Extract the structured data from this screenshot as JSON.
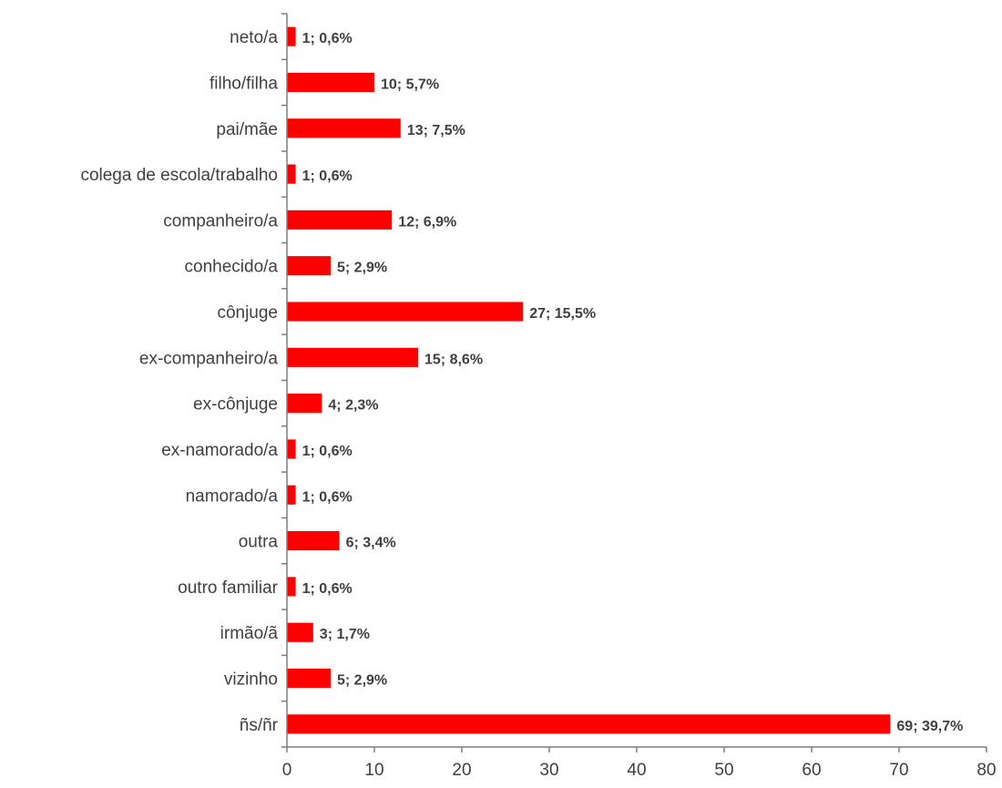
{
  "chart_data": {
    "type": "bar",
    "orientation": "horizontal",
    "categories": [
      "neto/a",
      "filho/filha",
      "pai/mãe",
      "colega de escola/trabalho",
      "companheiro/a",
      "conhecido/a",
      "cônjuge",
      "ex-companheiro/a",
      "ex-cônjuge",
      "ex-namorado/a",
      "namorado/a",
      "outra",
      "outro familiar",
      "irmão/ã",
      "vizinho",
      "ñs/ñr"
    ],
    "values": [
      1,
      10,
      13,
      1,
      12,
      5,
      27,
      15,
      4,
      1,
      1,
      6,
      1,
      3,
      5,
      69
    ],
    "data_labels": [
      "1; 0,6%",
      "10; 5,7%",
      "13; 7,5%",
      "1; 0,6%",
      "12; 6,9%",
      "5; 2,9%",
      "27; 15,5%",
      "15; 8,6%",
      "4; 2,3%",
      "1; 0,6%",
      "1; 0,6%",
      "6; 3,4%",
      "1; 0,6%",
      "3; 1,7%",
      "5; 2,9%",
      "69; 39,7%"
    ],
    "x_ticks": [
      "0",
      "10",
      "20",
      "30",
      "40",
      "50",
      "60",
      "70",
      "80"
    ],
    "xlim": [
      0,
      80
    ],
    "bar_color": "#ff0000",
    "grid": false,
    "legend": "none",
    "title": "",
    "xlabel": "",
    "ylabel": ""
  }
}
